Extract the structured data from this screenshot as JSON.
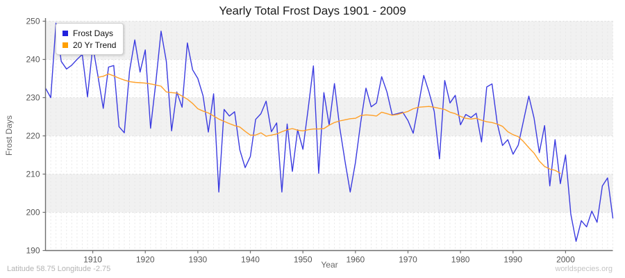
{
  "title": "Yearly Total Frost Days 1901 - 2009",
  "ylabel": "Frost Days",
  "xlabel": "Year",
  "footer_left": "Latitude 58.75 Longitude -2.75",
  "footer_right": "worldspecies.org",
  "legend": {
    "items": [
      {
        "label": "Frost Days",
        "color": "#2222dd"
      },
      {
        "label": "20 Yr Trend",
        "color": "#ff9f00"
      }
    ]
  },
  "chart_data": {
    "type": "line",
    "title": "Yearly Total Frost Days 1901 - 2009",
    "xlabel": "Year",
    "ylabel": "Frost Days",
    "xlim": [
      1901,
      2009
    ],
    "ylim": [
      190,
      250
    ],
    "xticks": [
      1910,
      1920,
      1930,
      1940,
      1950,
      1960,
      1970,
      1980,
      1990,
      2000
    ],
    "yticks": [
      190,
      200,
      210,
      220,
      230,
      240,
      250
    ],
    "grid": "yearly dashed vertical lines, dashed horizontal lines every 10, alternating horizontal bands (grey topmost)",
    "band_colors": [
      "#f1f1f1",
      "#ffffff"
    ],
    "legend_position": "top-left",
    "series": [
      {
        "name": "Frost Days",
        "color": "#3a3ae0",
        "x_start": 1901,
        "values": [
          232.5,
          230,
          249.5,
          239.5,
          237.5,
          238.5,
          240,
          241.3,
          230.2,
          243.5,
          235.6,
          227.2,
          238,
          238.4,
          222.4,
          220.8,
          236.9,
          245.1,
          236.7,
          242.5,
          222,
          234,
          247.4,
          239.5,
          221.3,
          231.5,
          227.5,
          244.3,
          237.3,
          235,
          230.5,
          221,
          231,
          205.3,
          226.9,
          225.2,
          226.3,
          216.3,
          211.7,
          214.6,
          224.3,
          225.8,
          229.1,
          221.1,
          223.4,
          205.3,
          223.1,
          210.7,
          221.6,
          216.5,
          227,
          238.3,
          210.2,
          231.3,
          222.8,
          233.7,
          222.3,
          213.5,
          205.3,
          213,
          223.5,
          232.5,
          227.6,
          228.6,
          235.5,
          231.5,
          225.5,
          225.8,
          226.2,
          224,
          220.7,
          228,
          235.8,
          231.5,
          226.4,
          214,
          234.5,
          228.6,
          230.6,
          222.9,
          225.6,
          224.8,
          225.9,
          218.4,
          232.8,
          233.6,
          223.2,
          217.5,
          219,
          215.2,
          217.6,
          224,
          230.4,
          224.7,
          215.6,
          222.7,
          206.9,
          219,
          207.5,
          215,
          199.5,
          192.4,
          197.8,
          196.2,
          200.3,
          197.4,
          206.9,
          209,
          198.5
        ]
      },
      {
        "name": "20 Yr Trend",
        "color": "#ffa028",
        "x_start": 1911,
        "values": [
          235.3,
          235.6,
          236.2,
          235.7,
          235.1,
          234.6,
          234.2,
          234.0,
          233.9,
          233.8,
          233.6,
          233.3,
          233.0,
          231.5,
          231.3,
          231.2,
          230.4,
          229.6,
          228.5,
          227.1,
          226.5,
          226.0,
          225.2,
          224.4,
          223.8,
          223.2,
          222.7,
          222.3,
          221.2,
          220.2,
          220.2,
          220.8,
          219.9,
          220.2,
          220.5,
          221.1,
          221.6,
          221.9,
          221.5,
          221.3,
          221.6,
          221.8,
          221.8,
          221.9,
          222.8,
          223.5,
          223.9,
          224.2,
          224.5,
          224.6,
          225.3,
          225.5,
          225.4,
          225.2,
          226.2,
          225.8,
          225.4,
          225.6,
          226.0,
          226.4,
          227.1,
          227.5,
          227.6,
          227.7,
          227.5,
          227.2,
          226.9,
          226.2,
          225.8,
          225.1,
          224.6,
          224.4,
          224.6,
          224.1,
          223.7,
          223.5,
          223.1,
          222.5,
          221.1,
          220.3,
          219.8,
          218.5,
          216.9,
          215.5,
          213.4,
          212.0,
          211.3,
          211.0,
          210.2
        ]
      }
    ]
  }
}
